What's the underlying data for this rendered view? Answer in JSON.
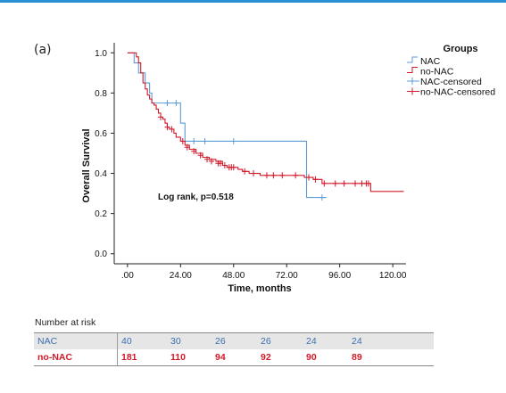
{
  "panel_label": "(a)",
  "colors": {
    "nac": "#5b9bd5",
    "no_nac": "#d1192a",
    "accent": "#2a8fd4"
  },
  "chart_data": {
    "type": "line",
    "subtype": "kaplan-meier",
    "xlabel": "Time, months",
    "ylabel": "Overall Survival",
    "xlim": [
      -6,
      126
    ],
    "ylim": [
      -0.05,
      1.05
    ],
    "x_ticks": [
      0,
      24,
      48,
      72,
      96,
      120
    ],
    "x_tick_labels": [
      ".00",
      "24.00",
      "48.00",
      "72.00",
      "96.00",
      "120.00"
    ],
    "y_ticks": [
      0,
      0.2,
      0.4,
      0.6,
      0.8,
      1.0
    ],
    "y_tick_labels": [
      "0.0",
      "0.2",
      "0.4",
      "0.6",
      "0.8",
      "1.0"
    ],
    "grid": false,
    "annotation": "Log rank, p=0.518",
    "legend": {
      "title": "Groups",
      "position": "top-right",
      "entries": [
        "NAC",
        "no-NAC",
        "NAC-censored",
        "no-NAC-censored"
      ]
    },
    "series": [
      {
        "name": "NAC",
        "color": "#5b9bd5",
        "steps": [
          [
            0,
            1.0
          ],
          [
            3,
            0.95
          ],
          [
            5,
            0.9
          ],
          [
            8,
            0.85
          ],
          [
            10,
            0.8
          ],
          [
            11,
            0.75
          ],
          [
            24,
            0.65
          ],
          [
            26,
            0.56
          ],
          [
            81,
            0.28
          ],
          [
            90,
            0.28
          ]
        ],
        "censored": [
          [
            18,
            0.75
          ],
          [
            22,
            0.75
          ],
          [
            30,
            0.56
          ],
          [
            35,
            0.56
          ],
          [
            48,
            0.56
          ],
          [
            88,
            0.28
          ]
        ]
      },
      {
        "name": "no-NAC",
        "color": "#d1192a",
        "steps": [
          [
            0,
            1.0
          ],
          [
            4,
            0.98
          ],
          [
            5,
            0.95
          ],
          [
            6,
            0.9
          ],
          [
            7,
            0.85
          ],
          [
            8,
            0.82
          ],
          [
            9,
            0.79
          ],
          [
            10,
            0.77
          ],
          [
            11,
            0.75
          ],
          [
            12,
            0.74
          ],
          [
            13,
            0.72
          ],
          [
            14,
            0.7
          ],
          [
            15,
            0.68
          ],
          [
            16,
            0.67
          ],
          [
            17,
            0.65
          ],
          [
            18,
            0.63
          ],
          [
            19,
            0.62
          ],
          [
            21,
            0.6
          ],
          [
            22,
            0.58
          ],
          [
            24,
            0.56
          ],
          [
            26,
            0.54
          ],
          [
            28,
            0.52
          ],
          [
            31,
            0.5
          ],
          [
            34,
            0.48
          ],
          [
            37,
            0.47
          ],
          [
            40,
            0.46
          ],
          [
            43,
            0.44
          ],
          [
            45,
            0.43
          ],
          [
            50,
            0.42
          ],
          [
            52,
            0.41
          ],
          [
            55,
            0.4
          ],
          [
            60,
            0.39
          ],
          [
            80,
            0.38
          ],
          [
            84,
            0.37
          ],
          [
            88,
            0.35
          ],
          [
            110,
            0.31
          ],
          [
            125,
            0.31
          ]
        ],
        "censored": [
          [
            15,
            0.68
          ],
          [
            18,
            0.63
          ],
          [
            20,
            0.62
          ],
          [
            25,
            0.56
          ],
          [
            27,
            0.53
          ],
          [
            30,
            0.51
          ],
          [
            33,
            0.49
          ],
          [
            36,
            0.47
          ],
          [
            38,
            0.46
          ],
          [
            41,
            0.45
          ],
          [
            42,
            0.45
          ],
          [
            44,
            0.44
          ],
          [
            46,
            0.43
          ],
          [
            47,
            0.43
          ],
          [
            48,
            0.43
          ],
          [
            53,
            0.41
          ],
          [
            57,
            0.4
          ],
          [
            63,
            0.39
          ],
          [
            66,
            0.39
          ],
          [
            70,
            0.39
          ],
          [
            76,
            0.39
          ],
          [
            82,
            0.38
          ],
          [
            85,
            0.37
          ],
          [
            89,
            0.35
          ],
          [
            94,
            0.35
          ],
          [
            98,
            0.35
          ],
          [
            103,
            0.35
          ],
          [
            106,
            0.35
          ],
          [
            108,
            0.35
          ],
          [
            109,
            0.35
          ]
        ]
      }
    ]
  },
  "risk_table": {
    "header": "Number at risk",
    "rows": [
      {
        "name": "NAC",
        "values": [
          "40",
          "30",
          "26",
          "26",
          "24",
          "24"
        ]
      },
      {
        "name": "no-NAC",
        "values": [
          "181",
          "110",
          "94",
          "92",
          "90",
          "89"
        ]
      }
    ]
  }
}
